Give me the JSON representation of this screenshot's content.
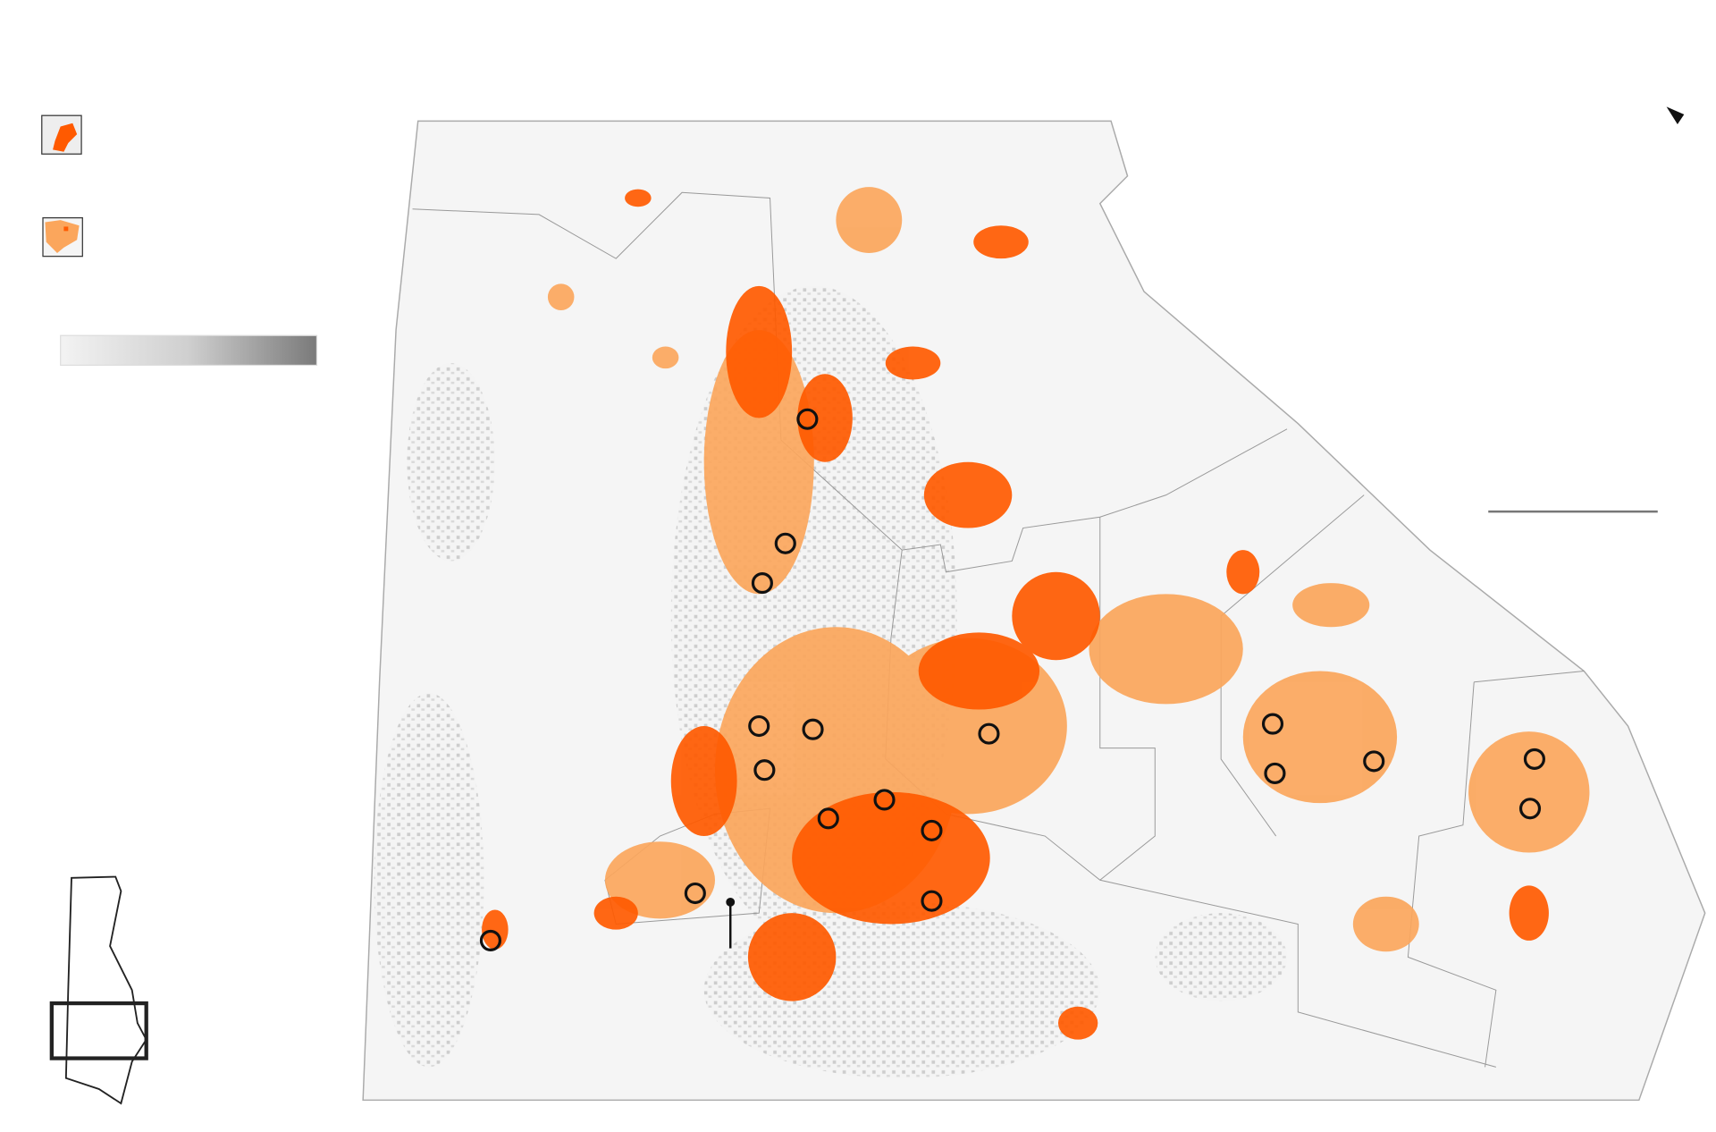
{
  "colors": {
    "severe_damage": "#ff5a00",
    "moderate_damage": "#fba65c",
    "land": "#f4f4f4",
    "buildings": "#b8b8b8",
    "boundary": "#999999",
    "marker": "#111111"
  },
  "legend": {
    "items": [
      {
        "icon": "severe-damage-swatch-icon"
      },
      {
        "icon": "moderate-damage-swatch-icon"
      },
      {
        "icon": "building-density-gradient-icon"
      }
    ]
  },
  "icons": {
    "north_arrow": "north-arrow-icon",
    "scale_bar": "scale-bar-icon",
    "locator_inset": "locator-map-icon",
    "site_marker": "circle-marker-icon",
    "pin": "pin-icon"
  },
  "marker_count": 18
}
